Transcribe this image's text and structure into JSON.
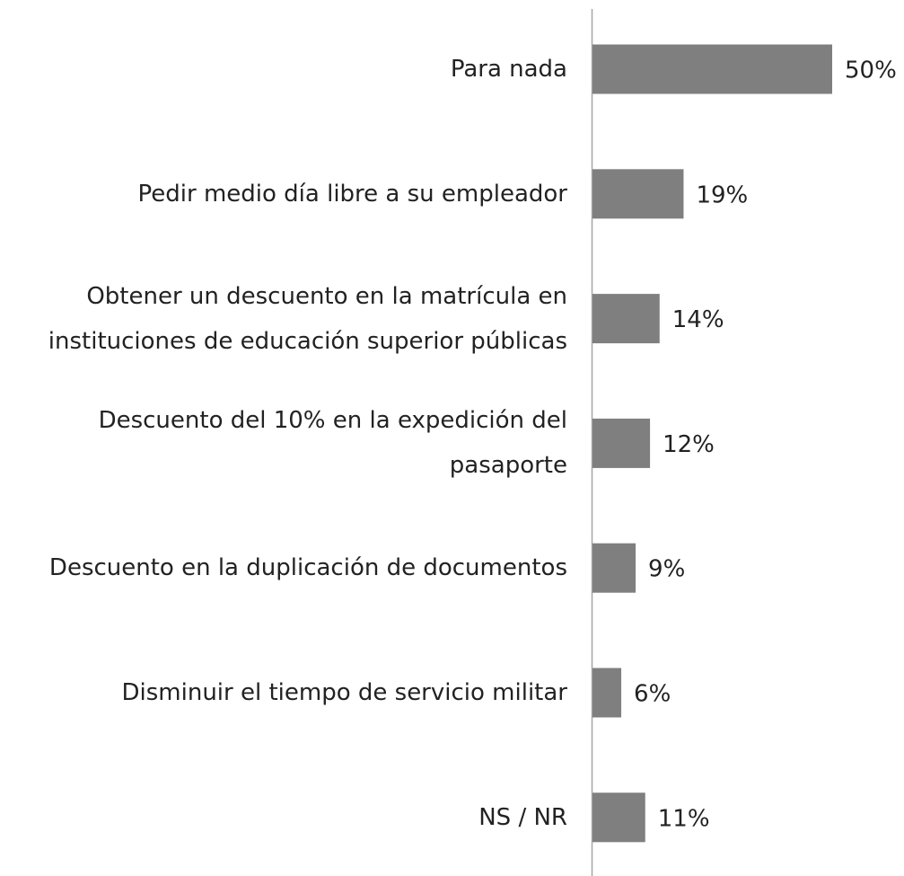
{
  "chart_data": {
    "type": "bar",
    "orientation": "horizontal",
    "categories": [
      "Para nada",
      "Pedir medio día libre a su empleador",
      "Obtener un descuento en la matrícula en\ninstituciones de educación superior públicas",
      "Descuento del 10% en la expedición del\npasaporte",
      "Descuento en la duplicación de documentos",
      "Disminuir el tiempo de servicio militar",
      "NS / NR"
    ],
    "values": [
      50,
      19,
      14,
      12,
      9,
      6,
      11
    ],
    "value_labels": [
      "50%",
      "19%",
      "14%",
      "12%",
      "9%",
      "6%",
      "11%"
    ],
    "color": "#7f7f7f"
  }
}
